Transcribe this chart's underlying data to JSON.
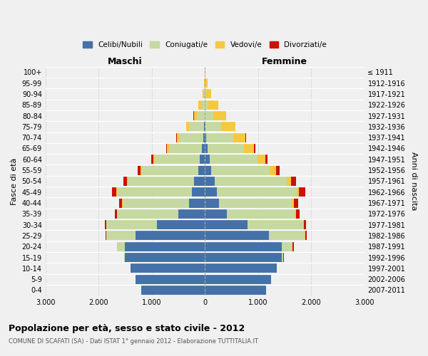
{
  "age_groups": [
    "0-4",
    "5-9",
    "10-14",
    "15-19",
    "20-24",
    "25-29",
    "30-34",
    "35-39",
    "40-44",
    "45-49",
    "50-54",
    "55-59",
    "60-64",
    "65-69",
    "70-74",
    "75-79",
    "80-84",
    "85-89",
    "90-94",
    "95-99",
    "100+"
  ],
  "birth_years": [
    "2007-2011",
    "2002-2006",
    "1997-2001",
    "1992-1996",
    "1987-1991",
    "1982-1986",
    "1977-1981",
    "1972-1976",
    "1967-1971",
    "1962-1966",
    "1957-1961",
    "1952-1956",
    "1947-1951",
    "1942-1946",
    "1937-1941",
    "1932-1936",
    "1927-1931",
    "1922-1926",
    "1917-1921",
    "1912-1916",
    "≤ 1911"
  ],
  "males": {
    "celibi": [
      1200,
      1300,
      1400,
      1500,
      1500,
      1300,
      900,
      500,
      300,
      250,
      200,
      130,
      90,
      55,
      30,
      12,
      5,
      2,
      1,
      1,
      0
    ],
    "coniugati": [
      0,
      0,
      0,
      20,
      150,
      550,
      950,
      1150,
      1250,
      1400,
      1250,
      1050,
      850,
      620,
      450,
      280,
      140,
      60,
      20,
      8,
      2
    ],
    "vedovi": [
      0,
      0,
      0,
      0,
      0,
      0,
      5,
      8,
      10,
      15,
      20,
      25,
      25,
      35,
      50,
      60,
      65,
      55,
      25,
      10,
      3
    ],
    "divorziati": [
      0,
      0,
      0,
      0,
      5,
      15,
      30,
      40,
      60,
      80,
      70,
      55,
      45,
      22,
      12,
      5,
      2,
      1,
      0,
      0,
      0
    ]
  },
  "females": {
    "nubili": [
      1150,
      1250,
      1350,
      1450,
      1450,
      1200,
      800,
      420,
      260,
      230,
      190,
      120,
      85,
      50,
      28,
      10,
      4,
      2,
      1,
      1,
      0
    ],
    "coniugate": [
      0,
      0,
      0,
      30,
      200,
      680,
      1050,
      1280,
      1380,
      1500,
      1350,
      1100,
      900,
      680,
      500,
      300,
      150,
      65,
      22,
      8,
      2
    ],
    "vedove": [
      0,
      0,
      0,
      0,
      5,
      10,
      15,
      20,
      30,
      45,
      80,
      120,
      150,
      200,
      230,
      260,
      240,
      180,
      90,
      40,
      8
    ],
    "divorziate": [
      0,
      0,
      0,
      5,
      15,
      30,
      45,
      65,
      90,
      110,
      95,
      70,
      50,
      25,
      12,
      5,
      2,
      1,
      0,
      0,
      0
    ]
  },
  "colors": {
    "celibi": "#4472a8",
    "coniugati": "#c5d9a0",
    "vedovi": "#f5c842",
    "divorziati": "#cc1100"
  },
  "xlim": 3000,
  "title": "Popolazione per età, sesso e stato civile - 2012",
  "subtitle": "COMUNE DI SCAFATI (SA) - Dati ISTAT 1° gennaio 2012 - Elaborazione TUTTITALIA.IT",
  "ylabel_left": "Fasce di età",
  "ylabel_right": "Anni di nascita",
  "header_left": "Maschi",
  "header_right": "Femmine",
  "legend_labels": [
    "Celibi/Nubili",
    "Coniugati/e",
    "Vedovi/e",
    "Divorziati/e"
  ],
  "legend_colors": [
    "#4472a8",
    "#c5d9a0",
    "#f5c842",
    "#cc1100"
  ],
  "bg_color": "#f0f0f0"
}
